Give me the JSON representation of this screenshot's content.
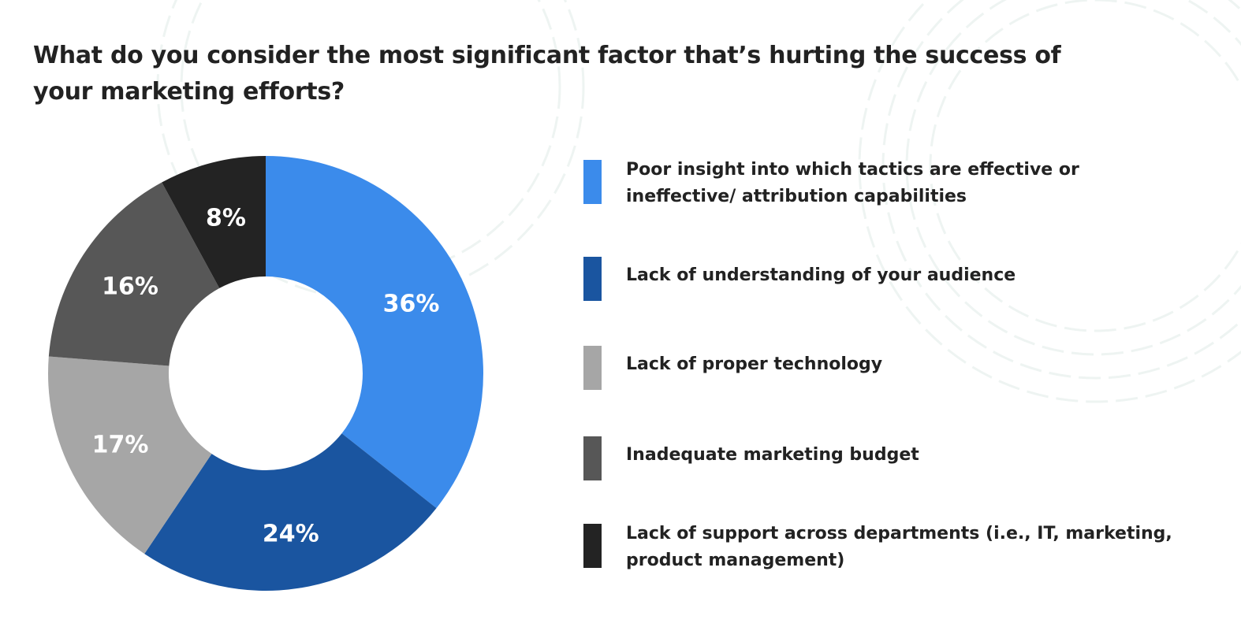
{
  "chart_data": {
    "type": "pie",
    "style": "donut",
    "title": "What do you consider the most significant factor that’s hurting the success of your marketing efforts?",
    "legend_position": "right",
    "slices": [
      {
        "label": "Poor insight into which tactics are effective or ineffective/ attribution capabilities",
        "value": 36,
        "value_label": "36%",
        "color": "#3b8beb"
      },
      {
        "label": "Lack of understanding of your audience",
        "value": 24,
        "value_label": "24%",
        "color": "#1a55a0"
      },
      {
        "label": "Lack of proper technology",
        "value": 17,
        "value_label": "17%",
        "color": "#a6a6a6"
      },
      {
        "label": "Inadequate marketing budget",
        "value": 16,
        "value_label": "16%",
        "color": "#575757"
      },
      {
        "label": "Lack of support across departments (i.e., IT, marketing, product management)",
        "value": 8,
        "value_label": "8%",
        "color": "#232323"
      }
    ]
  }
}
